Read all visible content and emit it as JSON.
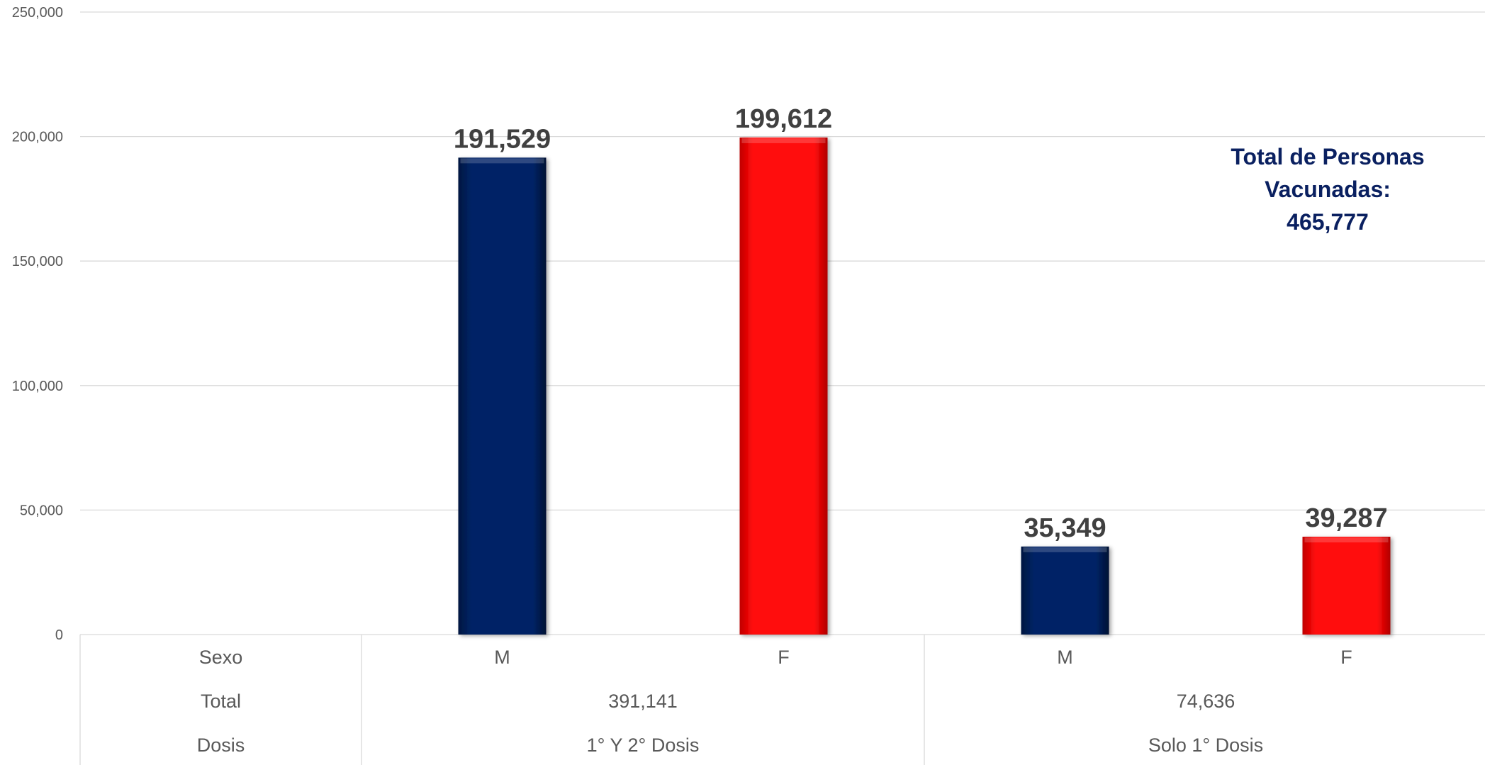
{
  "chart_data": {
    "type": "bar",
    "ylim": [
      0,
      250000
    ],
    "yticks": [
      0,
      50000,
      100000,
      150000,
      200000,
      250000
    ],
    "ytick_labels": [
      "0",
      "50,000",
      "100,000",
      "150,000",
      "200,000",
      "250,000"
    ],
    "grid": true,
    "bars": [
      {
        "sexo": "M",
        "group": "1° Y 2° Dosis",
        "value": 191529,
        "label": "191,529",
        "color": "#062466"
      },
      {
        "sexo": "F",
        "group": "1° Y 2° Dosis",
        "value": 199612,
        "label": "199,612",
        "color": "#ff0a0a"
      },
      {
        "sexo": "M",
        "group": "Solo 1° Dosis",
        "value": 35349,
        "label": "35,349",
        "color": "#062466"
      },
      {
        "sexo": "F",
        "group": "Solo 1° Dosis",
        "value": 39287,
        "label": "39,287",
        "color": "#ff0a0a"
      }
    ],
    "table": {
      "row_labels": [
        "Sexo",
        "Total",
        "Dosis"
      ],
      "groups": [
        {
          "dosis": "1° Y 2° Dosis",
          "total": "391,141"
        },
        {
          "dosis": "Solo 1° Dosis",
          "total": "74,636"
        }
      ]
    },
    "annotation": [
      "Total de Personas",
      "Vacunadas:",
      "465,777"
    ]
  }
}
